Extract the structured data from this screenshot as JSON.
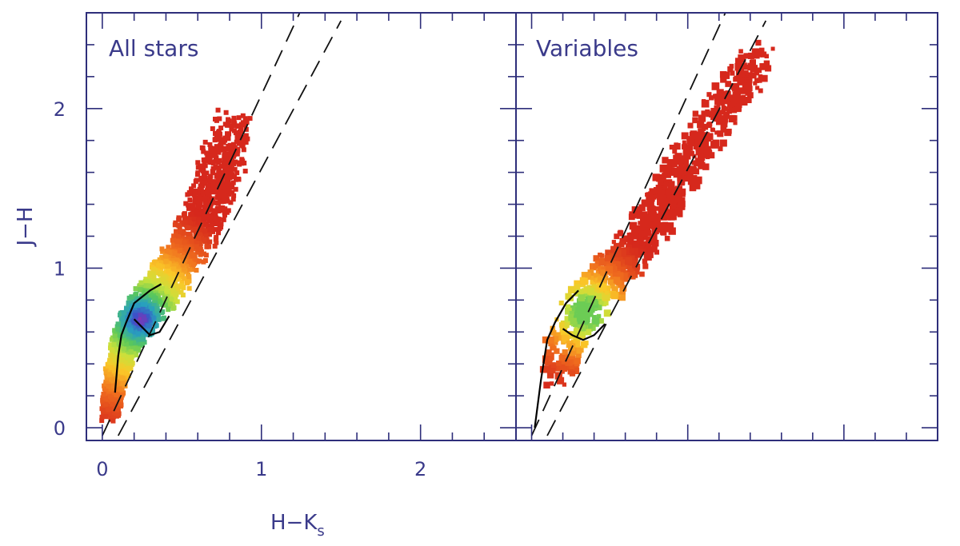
{
  "chart_data": [
    {
      "type": "heatmap",
      "panel_label": "All stars",
      "xlabel_main": "H−K",
      "xlabel_sub": "s",
      "ylabel": "J−H",
      "xlim": [
        -0.1,
        2.6
      ],
      "ylim": [
        -0.08,
        2.6
      ],
      "xticks": [
        {
          "value": 0,
          "label": "0"
        },
        {
          "value": 1,
          "label": "1"
        },
        {
          "value": 2,
          "label": "2"
        }
      ],
      "yticks": [
        {
          "value": 0,
          "label": "0"
        },
        {
          "value": 1,
          "label": "1"
        },
        {
          "value": 2,
          "label": "2"
        }
      ],
      "reddening_lines": [
        {
          "x": [
            0.0,
            1.25
          ],
          "y": [
            -0.05,
            2.62
          ]
        },
        {
          "x": [
            0.1,
            1.5
          ],
          "y": [
            -0.05,
            2.55
          ]
        }
      ],
      "intrinsic_track": [
        {
          "x": [
            0.08,
            0.1,
            0.12,
            0.15,
            0.2,
            0.3,
            0.37
          ],
          "y": [
            0.22,
            0.45,
            0.58,
            0.66,
            0.78,
            0.86,
            0.9
          ]
        },
        {
          "x": [
            0.2,
            0.26,
            0.3,
            0.36,
            0.42
          ],
          "y": [
            0.68,
            0.62,
            0.58,
            0.6,
            0.7
          ]
        }
      ],
      "density_ridge": [
        {
          "x": 0.05,
          "y": 0.1
        },
        {
          "x": 0.08,
          "y": 0.3
        },
        {
          "x": 0.12,
          "y": 0.45
        },
        {
          "x": 0.15,
          "y": 0.55
        },
        {
          "x": 0.2,
          "y": 0.65
        },
        {
          "x": 0.28,
          "y": 0.75
        },
        {
          "x": 0.4,
          "y": 0.9
        },
        {
          "x": 0.52,
          "y": 1.1
        },
        {
          "x": 0.62,
          "y": 1.3
        },
        {
          "x": 0.72,
          "y": 1.55
        },
        {
          "x": 0.82,
          "y": 1.85
        }
      ],
      "peak": {
        "x": 0.24,
        "y": 0.68
      }
    },
    {
      "type": "heatmap",
      "panel_label": "Variables",
      "xlim": [
        -0.1,
        2.6
      ],
      "ylim": [
        -0.08,
        2.6
      ],
      "reddening_lines": [
        {
          "x": [
            0.0,
            1.25
          ],
          "y": [
            -0.05,
            2.62
          ]
        },
        {
          "x": [
            0.1,
            1.5
          ],
          "y": [
            -0.05,
            2.55
          ]
        }
      ],
      "intrinsic_track": [
        {
          "x": [
            0.02,
            0.06,
            0.1,
            0.15,
            0.22,
            0.3
          ],
          "y": [
            0.0,
            0.3,
            0.55,
            0.66,
            0.78,
            0.86
          ]
        },
        {
          "x": [
            0.2,
            0.26,
            0.33,
            0.4,
            0.47
          ],
          "y": [
            0.62,
            0.58,
            0.55,
            0.58,
            0.65
          ]
        }
      ],
      "density_ridge": [
        {
          "x": 0.15,
          "y": 0.35
        },
        {
          "x": 0.3,
          "y": 0.7
        },
        {
          "x": 0.45,
          "y": 0.9
        },
        {
          "x": 0.6,
          "y": 1.05
        },
        {
          "x": 0.75,
          "y": 1.25
        },
        {
          "x": 0.9,
          "y": 1.5
        },
        {
          "x": 1.05,
          "y": 1.75
        },
        {
          "x": 1.25,
          "y": 2.05
        },
        {
          "x": 1.45,
          "y": 2.3
        }
      ],
      "peak": {
        "x": 0.35,
        "y": 0.72
      }
    }
  ]
}
